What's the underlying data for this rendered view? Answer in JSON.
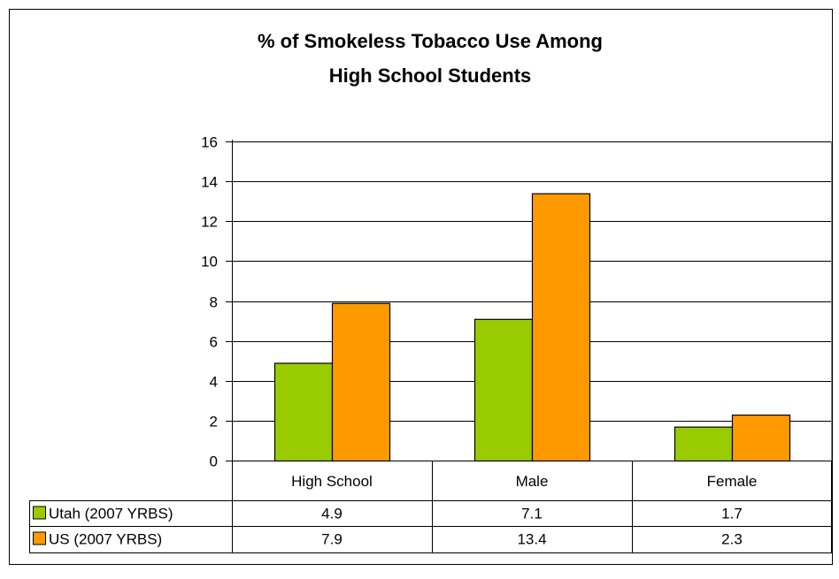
{
  "chart_data": {
    "type": "bar",
    "title_lines": [
      "% of Smokeless Tobacco Use Among",
      "High School Students"
    ],
    "categories": [
      "High School",
      "Male",
      "Female"
    ],
    "series": [
      {
        "name": "Utah (2007 YRBS)",
        "values": [
          4.9,
          7.1,
          1.7
        ],
        "color": "#99cc00"
      },
      {
        "name": "US (2007 YRBS)",
        "values": [
          7.9,
          13.4,
          2.3
        ],
        "color": "#ff9900"
      }
    ],
    "value_labels": [
      [
        "4.9",
        "7.1",
        "1.7"
      ],
      [
        "7.9",
        "13.4",
        "2.3"
      ]
    ],
    "yticks": [
      "0",
      "2",
      "4",
      "6",
      "8",
      "10",
      "12",
      "14",
      "16"
    ],
    "ylim": [
      0,
      16
    ],
    "grid": true,
    "legend": "data-table"
  }
}
